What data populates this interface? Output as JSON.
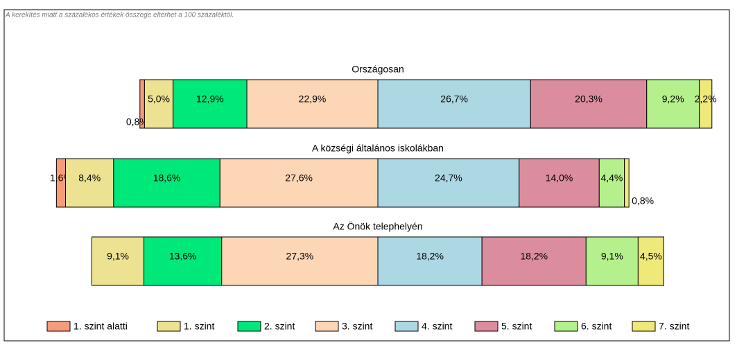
{
  "chart_data": {
    "type": "diverging-stacked-bar",
    "note": "A kerekítés miatt a  százalékos értékek összege eltérhet a 100 százaléktól.",
    "categories": [
      "Országosan",
      "A községi általános iskolákban",
      "Az Önök telephelyén"
    ],
    "series": [
      {
        "name": "1. szint alatti",
        "color": "#f79c7b",
        "values": [
          0.8,
          1.6,
          null
        ],
        "value_labels": [
          "0,8%",
          "1,6%",
          null
        ]
      },
      {
        "name": "1. szint",
        "color": "#ede292",
        "values": [
          5.0,
          8.4,
          9.1
        ],
        "value_labels": [
          "5,0%",
          "8,4%",
          "9,1%"
        ]
      },
      {
        "name": "2. szint",
        "color": "#00e77a",
        "values": [
          12.9,
          18.6,
          13.6
        ],
        "value_labels": [
          "12,9%",
          "18,6%",
          "13,6%"
        ]
      },
      {
        "name": "3. szint",
        "color": "#fdd6b6",
        "values": [
          22.9,
          27.6,
          27.3
        ],
        "value_labels": [
          "22,9%",
          "27,6%",
          "27,3%"
        ]
      },
      {
        "name": "4. szint",
        "color": "#acd8e4",
        "values": [
          26.7,
          24.7,
          18.2
        ],
        "value_labels": [
          "26,7%",
          "24,7%",
          "18,2%"
        ]
      },
      {
        "name": "5. szint",
        "color": "#dc8d9d",
        "values": [
          20.3,
          14.0,
          18.2
        ],
        "value_labels": [
          "20,3%",
          "14,0%",
          "18,2%"
        ]
      },
      {
        "name": "6. szint",
        "color": "#b4f08b",
        "values": [
          9.2,
          4.4,
          9.1
        ],
        "value_labels": [
          "9,2%",
          "4,4%",
          "9,1%"
        ]
      },
      {
        "name": "7. szint",
        "color": "#efe97a",
        "values": [
          2.2,
          0.8,
          4.5
        ],
        "value_labels": [
          "2,2%",
          "0,8%",
          "4,5%"
        ]
      }
    ]
  }
}
